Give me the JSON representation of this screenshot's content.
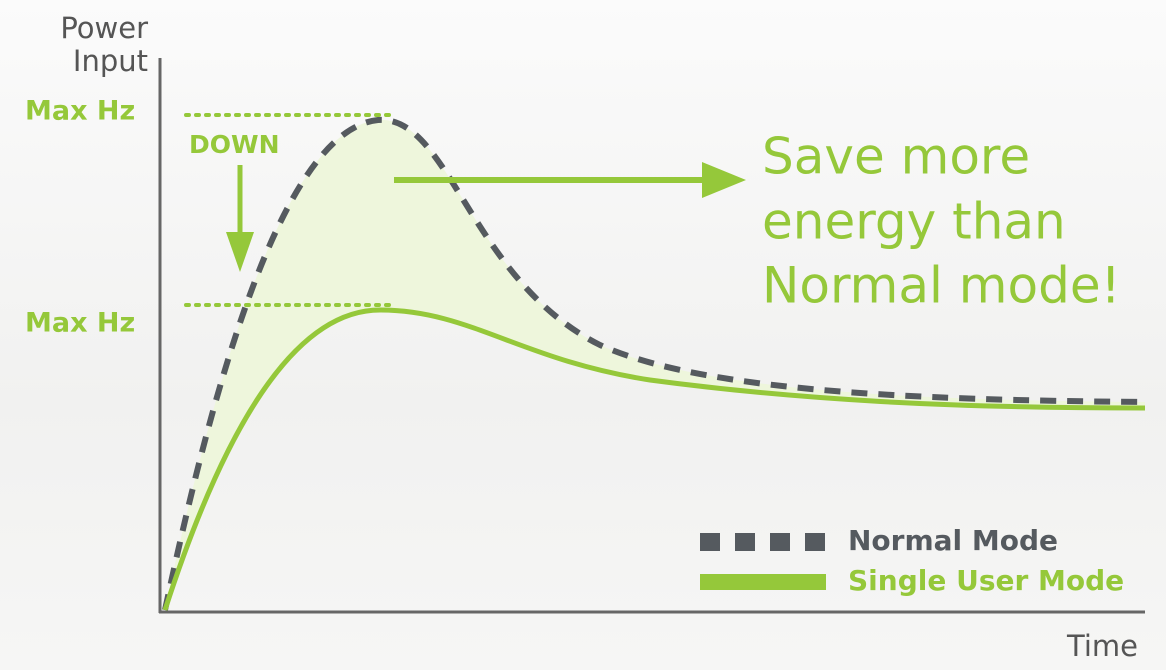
{
  "y_axis_title": [
    "Power",
    "Input"
  ],
  "x_axis_title": "Time",
  "levels": {
    "upper": "Max Hz",
    "lower": "Max Hz",
    "shift": "DOWN"
  },
  "message": [
    "Save more",
    "energy than",
    "Normal mode!"
  ],
  "legend": {
    "normal": "Normal Mode",
    "single": "Single User Mode"
  }
}
